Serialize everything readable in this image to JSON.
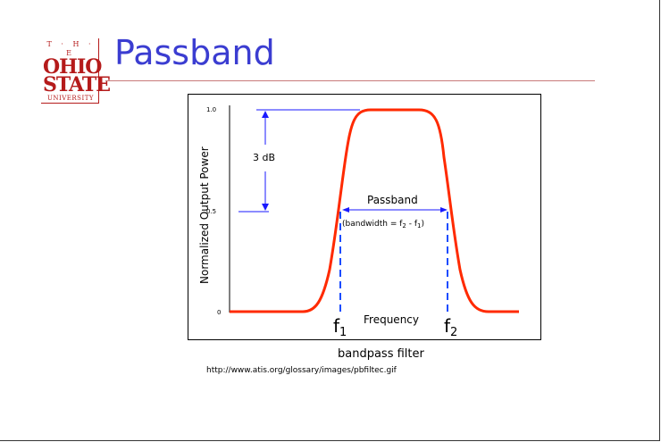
{
  "slide": {
    "title": "Passband",
    "logo": {
      "line1": "T · H · E",
      "line2": "OHIO",
      "line3": "STATE",
      "line4": "UNIVERSITY"
    },
    "caption": "bandpass filter",
    "url": "http://www.atis.org/glossary/images/pbfiltec.gif"
  },
  "diagram": {
    "ylabel": "Normalized Output Power",
    "yticks": [
      "1.0",
      "0.5",
      "0"
    ],
    "db_label": "3 dB",
    "passband_label": "Passband",
    "bandwidth_label_prefix": "(bandwidth = f",
    "bandwidth_label_mid": " - f",
    "bandwidth_label_suffix": ")",
    "sub2": "2",
    "sub1": "1",
    "xlabel": "Frequency",
    "f": "f",
    "colors": {
      "curve": "#ff2a00",
      "arrows": "#1a1aff",
      "markers": "#1a4cff",
      "title": "#3b3dd1",
      "logo": "#b51b1b"
    }
  }
}
